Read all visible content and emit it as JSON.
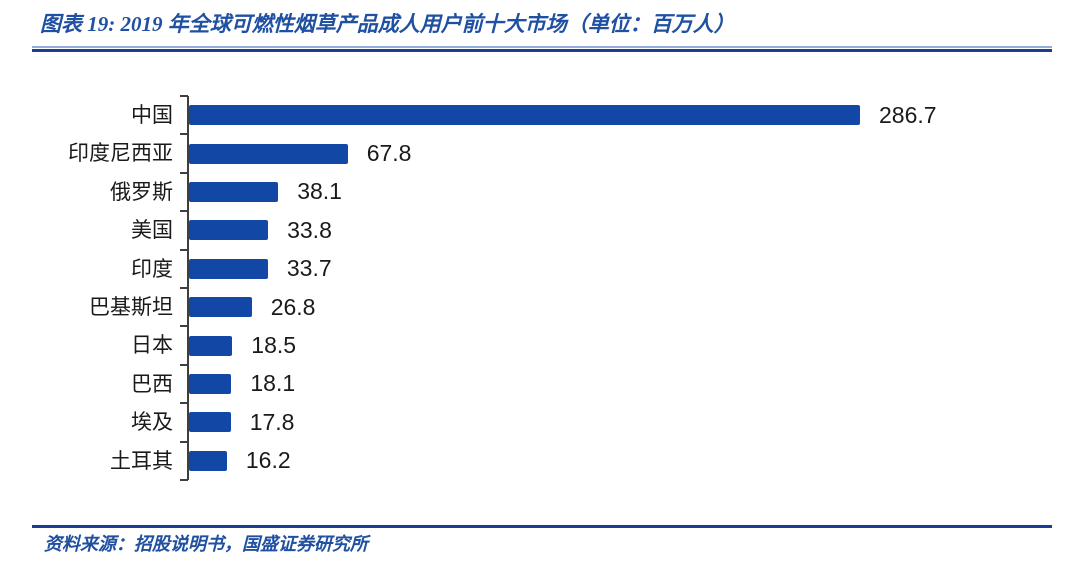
{
  "header": {
    "title": "图表 19: 2019 年全球可燃性烟草产品成人用户前十大市场（单位：百万人）"
  },
  "footer": {
    "source": "资料来源：招股说明书，国盛证券研究所"
  },
  "colors": {
    "bar": "#1347a6",
    "title_text": "#2050a2",
    "rule_dark": "#1b3c94",
    "rule_light": "#93acdb",
    "axis": "#3f3f3f",
    "value_text": "#1a1a1a"
  },
  "chart_data": {
    "type": "bar",
    "orientation": "horizontal",
    "title": "2019 年全球可燃性烟草产品成人用户前十大市场",
    "unit": "百万人",
    "categories": [
      "中国",
      "印度尼西亚",
      "俄罗斯",
      "美国",
      "印度",
      "巴基斯坦",
      "日本",
      "巴西",
      "埃及",
      "土耳其"
    ],
    "values": [
      286.7,
      67.8,
      38.1,
      33.8,
      33.7,
      26.8,
      18.5,
      18.1,
      17.8,
      16.2
    ],
    "value_labels_shown": true,
    "xlim": [
      0,
      300
    ],
    "grid": false,
    "legend": "none",
    "axis_ticks": 11
  }
}
